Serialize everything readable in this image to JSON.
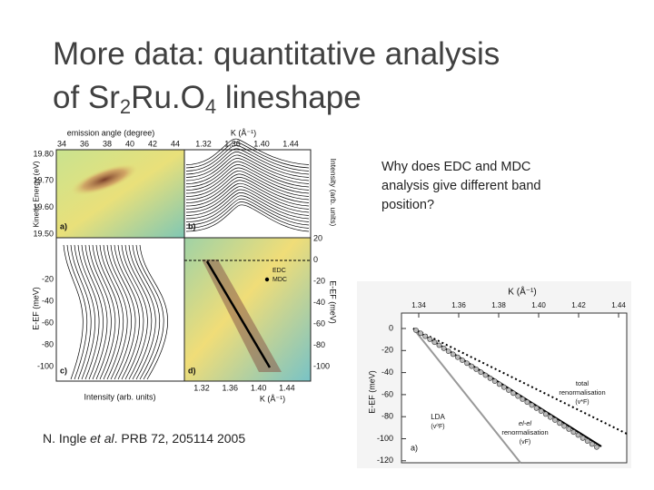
{
  "title": {
    "line1": "More data: quantitative analysis",
    "line2_a": "of Sr",
    "sub_a": "2",
    "line2_b": "Ru.O",
    "sub_b": "4",
    "line2_c": " lineshape"
  },
  "question": "Why does EDC and MDC analysis give different band position?",
  "citation": {
    "author": "N. Ingle ",
    "etal": "et al",
    "ref": ". PRB 72, 205114 2005"
  },
  "left_figure": {
    "panel_labels": [
      "a)",
      "b)",
      "c)",
      "d)"
    ],
    "top_left_axis": {
      "label": "emission angle (degree)",
      "ticks": [
        "34",
        "36",
        "38",
        "40",
        "42",
        "44"
      ]
    },
    "top_right_axis": {
      "label": "K (Å⁻¹)",
      "ticks": [
        "1.32",
        "1.36",
        "1.40",
        "1.44"
      ]
    },
    "left_top_axis": {
      "label": "Kinetic Energy (eV)",
      "ticks": [
        "19.80",
        "19.70",
        "19.60",
        "19.50"
      ]
    },
    "left_bottom_axis": {
      "label": "E-EF (meV)",
      "ticks": [
        "-20",
        "-40",
        "-60",
        "-80",
        "-100"
      ]
    },
    "right_top_axis_label": "Intensity (arb. units)",
    "right_bottom_axis": {
      "label": "E-EF (meV)",
      "ticks": [
        "20",
        "0",
        "-20",
        "-40",
        "-60",
        "-80",
        "-100"
      ]
    },
    "bottom_left_label": "Intensity (arb. units)",
    "bottom_right_axis": {
      "label": "K (Å⁻¹)",
      "ticks": [
        "1.32",
        "1.36",
        "1.40",
        "1.44"
      ]
    },
    "legend": [
      "EDC",
      "MDC"
    ]
  },
  "right_figure": {
    "x_axis": {
      "label": "K (Å⁻¹)",
      "ticks": [
        "1.34",
        "1.36",
        "1.38",
        "1.40",
        "1.42",
        "1.44"
      ]
    },
    "y_axis": {
      "label": "E-EF (meV)",
      "ticks": [
        "0",
        "-20",
        "-40",
        "-60",
        "-80",
        "-100",
        "-120"
      ]
    },
    "annotations": {
      "lda": "LDA",
      "lda_v": "(v⁰F)",
      "total": "total",
      "total2": "renormalisation",
      "total_v": "(v*F)",
      "elel": "el-el",
      "elel2": "renormalisation",
      "elel_v": "(vF)",
      "panel": "a)"
    }
  }
}
